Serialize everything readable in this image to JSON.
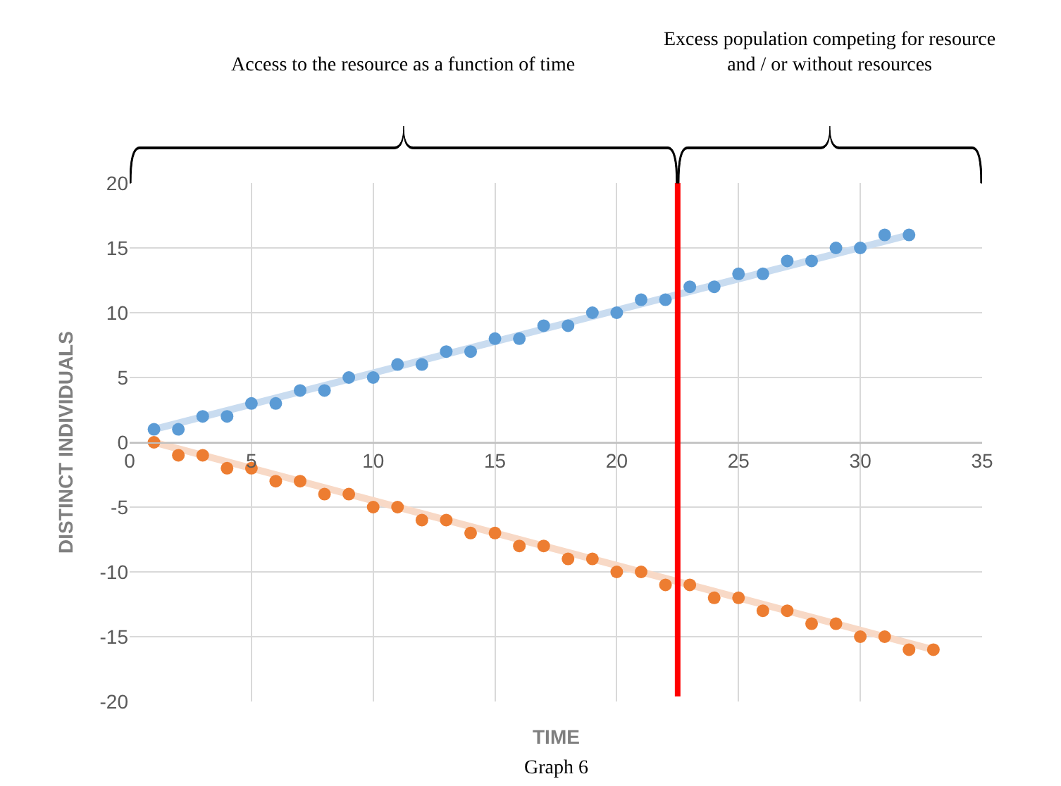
{
  "chart_data": {
    "type": "scatter",
    "xlabel": "TIME",
    "ylabel": "DISTINCT INDIVIDUALS",
    "xlim": [
      0,
      35
    ],
    "xticks": [
      0,
      5,
      10,
      15,
      20,
      25,
      30,
      35
    ],
    "ylim": [
      -20,
      20
    ],
    "yticks": [
      -20,
      -15,
      -10,
      -5,
      0,
      5,
      10,
      15,
      20
    ],
    "grid": true,
    "legend": false,
    "marker": "circle",
    "series": [
      {
        "color": "#5b9bd5",
        "x": [
          1,
          2,
          3,
          4,
          5,
          6,
          7,
          8,
          9,
          10,
          11,
          12,
          13,
          14,
          15,
          16,
          17,
          18,
          19,
          20,
          21,
          22,
          23,
          24,
          25,
          26,
          27,
          28,
          29,
          30,
          31,
          32
        ],
        "values": [
          1,
          1,
          2,
          2,
          3,
          3,
          4,
          4,
          5,
          5,
          6,
          6,
          7,
          7,
          8,
          8,
          9,
          9,
          10,
          10,
          11,
          11,
          12,
          12,
          13,
          13,
          14,
          14,
          15,
          15,
          16,
          16
        ]
      },
      {
        "color": "#ed7d31",
        "x": [
          1,
          2,
          3,
          4,
          5,
          6,
          7,
          8,
          9,
          10,
          11,
          12,
          13,
          14,
          15,
          16,
          17,
          18,
          19,
          20,
          21,
          22,
          23,
          24,
          25,
          26,
          27,
          28,
          29,
          30,
          31,
          32,
          33
        ],
        "values": [
          0,
          -1,
          -1,
          -2,
          -2,
          -3,
          -3,
          -4,
          -4,
          -5,
          -5,
          -6,
          -6,
          -7,
          -7,
          -8,
          -8,
          -9,
          -9,
          -10,
          -10,
          -11,
          -11,
          -12,
          -12,
          -13,
          -13,
          -14,
          -14,
          -15,
          -15,
          -16,
          -16
        ]
      },
      {
        "type": "line",
        "marker": "none",
        "color": "#c9dcf0",
        "x": [
          1,
          32
        ],
        "values": [
          1,
          16
        ]
      },
      {
        "type": "line",
        "marker": "none",
        "color": "#f8d9c6",
        "x": [
          1,
          33
        ],
        "values": [
          0,
          -16
        ]
      }
    ],
    "ref_lines": [
      {
        "axis": "x",
        "value": 22.5,
        "color": "#ff0000"
      }
    ],
    "annotations": [
      "Access to the resource as a function of time",
      "Excess population competing for resource\nand / or without resources",
      "Graph 6"
    ]
  }
}
